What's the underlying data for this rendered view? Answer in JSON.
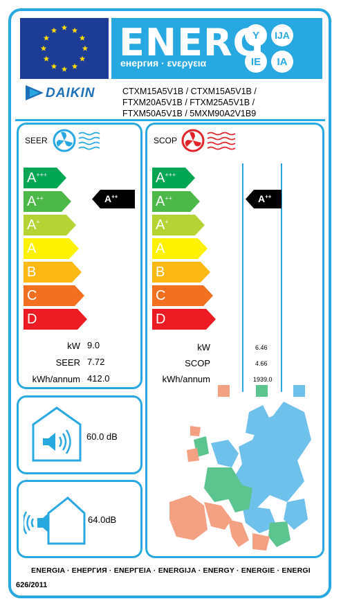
{
  "header": {
    "energ_title": "ENERG",
    "energ_subtitle": "енергия · ενεργεια",
    "languages": [
      "Y",
      "IJA",
      "IE",
      "IA"
    ],
    "brand": "DAIKIN",
    "models": [
      "CTXM15A5V1B / CTXM15A5V1B /",
      "FTXM20A5V1B / FTXM25A5V1B /",
      "FTXM50A5V1B / 5MXM90A2V1B9"
    ]
  },
  "cooling": {
    "label": "SEER",
    "classes": [
      {
        "letter": "A",
        "sup": "+++",
        "color": "#00a651"
      },
      {
        "letter": "A",
        "sup": "++",
        "color": "#4cb848"
      },
      {
        "letter": "A",
        "sup": "+",
        "color": "#b5d334"
      },
      {
        "letter": "A",
        "sup": "",
        "color": "#fff200"
      },
      {
        "letter": "B",
        "sup": "",
        "color": "#fdb913"
      },
      {
        "letter": "C",
        "sup": "",
        "color": "#f37021"
      },
      {
        "letter": "D",
        "sup": "",
        "color": "#ed1c24"
      }
    ],
    "rating": {
      "letter": "A",
      "sup": "++"
    },
    "rows": [
      {
        "label": "kW",
        "value": "9.0"
      },
      {
        "label": "SEER",
        "value": "7.72"
      },
      {
        "label": "kWh/annum",
        "value": "412.0"
      }
    ]
  },
  "heating": {
    "label": "SCOP",
    "classes": [
      {
        "letter": "A",
        "sup": "+++",
        "color": "#00a651"
      },
      {
        "letter": "A",
        "sup": "++",
        "color": "#4cb848"
      },
      {
        "letter": "A",
        "sup": "+",
        "color": "#b5d334"
      },
      {
        "letter": "A",
        "sup": "",
        "color": "#fff200"
      },
      {
        "letter": "B",
        "sup": "",
        "color": "#fdb913"
      },
      {
        "letter": "C",
        "sup": "",
        "color": "#f37021"
      },
      {
        "letter": "D",
        "sup": "",
        "color": "#ed1c24"
      }
    ],
    "rating": {
      "letter": "A",
      "sup": "++"
    },
    "rows": [
      {
        "label": "kW",
        "value": "6.46"
      },
      {
        "label": "SCOP",
        "value": "4.66"
      },
      {
        "label": "kWh/annum",
        "value": "1939.0"
      }
    ],
    "zone_colors": [
      "#f4a083",
      "#5cc48e",
      "#6ec1ea"
    ]
  },
  "noise": {
    "indoor": "60.0 dB",
    "outdoor_value": "64.0",
    "outdoor_unit": "dB"
  },
  "footer": {
    "languages": "ENERGIA · ЕНЕРГИЯ · ΕΝΕΡΓΕΙΑ · ENERGIJA · ENERGY · ENERGIE · ENERGI",
    "regulation": "626/2011"
  },
  "colors": {
    "frame": "#27a8e0",
    "eu_blue": "#1d3c96",
    "eu_star": "#ffdd00"
  }
}
